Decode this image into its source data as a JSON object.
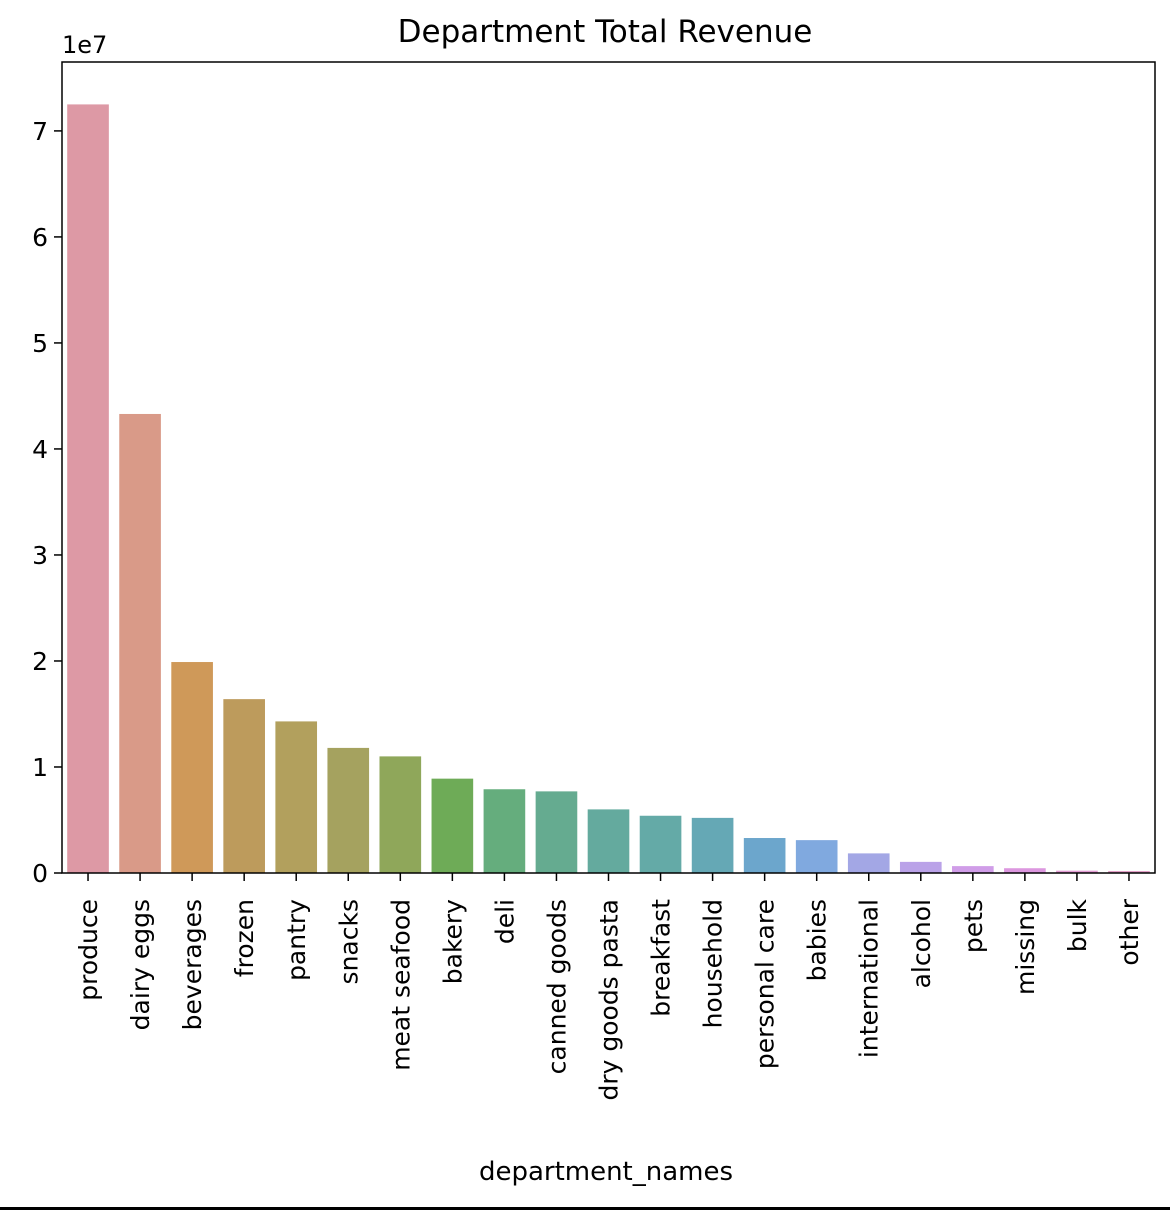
{
  "chart_data": {
    "type": "bar",
    "title": "Department Total Revenue",
    "xlabel": "department_names",
    "ylabel": "",
    "y_offset_label": "1e7",
    "y_scale": 10000000,
    "ylim": [
      0,
      76500000
    ],
    "yticks": [
      0,
      1,
      2,
      3,
      4,
      5,
      6,
      7
    ],
    "grid": false,
    "legend": "none",
    "categories": [
      "produce",
      "dairy eggs",
      "beverages",
      "frozen",
      "pantry",
      "snacks",
      "meat seafood",
      "bakery",
      "deli",
      "canned goods",
      "dry goods pasta",
      "breakfast",
      "household",
      "personal care",
      "babies",
      "international",
      "alcohol",
      "pets",
      "missing",
      "bulk",
      "other"
    ],
    "values": [
      72500000,
      43300000,
      19900000,
      16400000,
      14300000,
      11800000,
      11000000,
      8900000,
      7900000,
      7700000,
      6000000,
      5400000,
      5200000,
      3300000,
      3100000,
      1850000,
      1050000,
      650000,
      450000,
      220000,
      190000
    ],
    "colors": [
      "#dd99a5",
      "#d99a88",
      "#cf9959",
      "#bd9b5c",
      "#b2a05d",
      "#a5a25f",
      "#8fa75a",
      "#6eab57",
      "#65ad7d",
      "#65ab90",
      "#64aa9e",
      "#64aaa7",
      "#65a8b5",
      "#6ca6cc",
      "#80a9df",
      "#a3a7e5",
      "#baa2e8",
      "#d09de8",
      "#dc97df",
      "#e29cd3",
      "#e29fc6"
    ]
  }
}
